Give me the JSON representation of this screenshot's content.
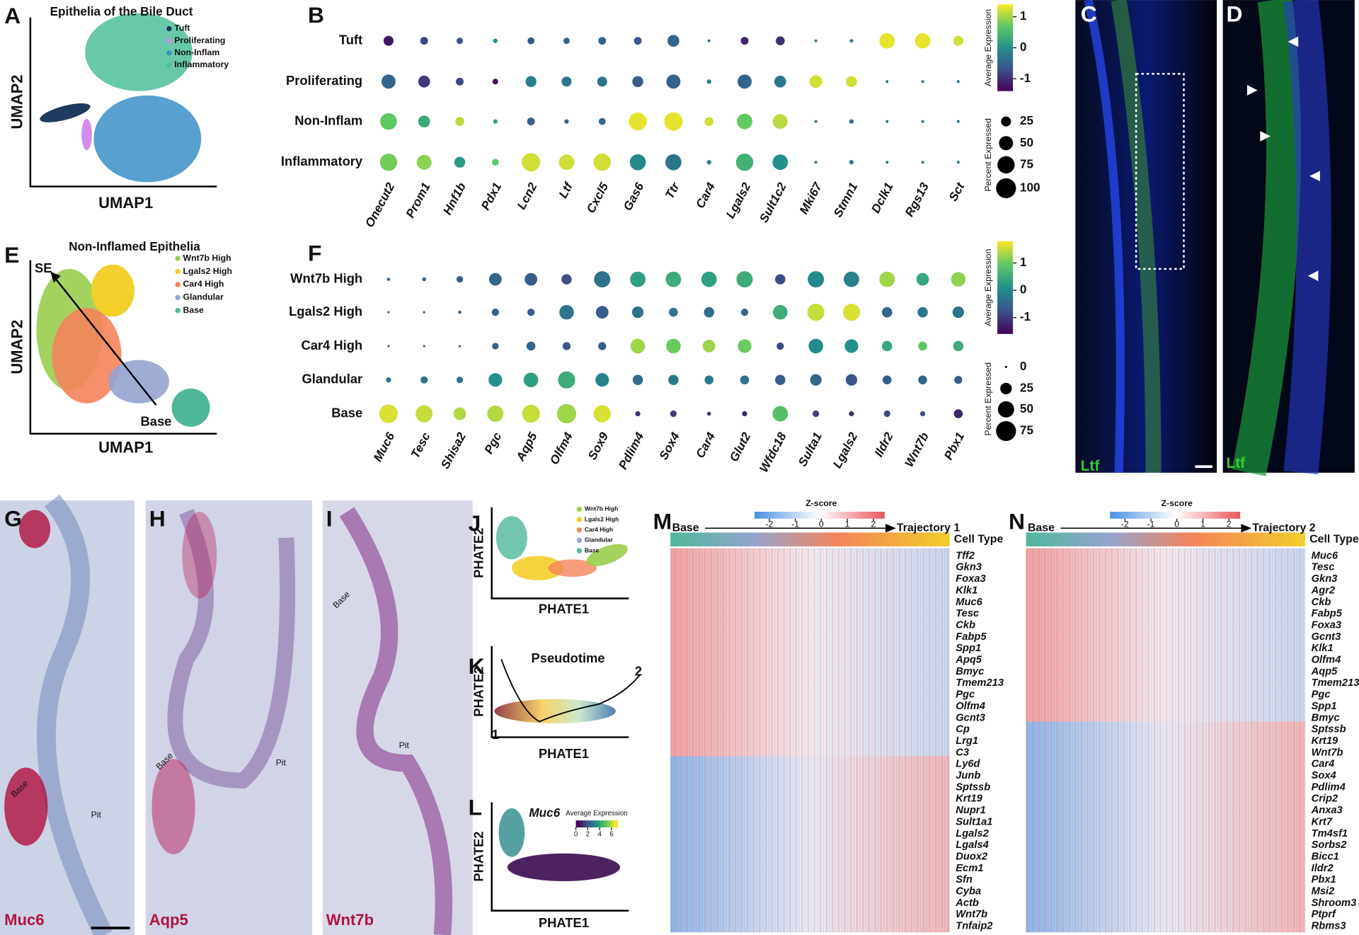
{
  "panel_a": {
    "letter": "A",
    "title": "Epithelia of the Bile Duct",
    "x_label": "UMAP1",
    "y_label": "UMAP2",
    "legend": [
      {
        "name": "Tuft",
        "color": "#1f3a5f"
      },
      {
        "name": "Proliferating",
        "color": "#d58be8"
      },
      {
        "name": "Non-Inflam",
        "color": "#3a8fc7"
      },
      {
        "name": "Inflammatory",
        "color": "#4dbf9a"
      }
    ]
  },
  "panel_b": {
    "letter": "B",
    "rows": [
      "Tuft",
      "Proliferating",
      "Non-Inflam",
      "Inflammatory"
    ],
    "genes": [
      "Onecut2",
      "Prom1",
      "Hnf1b",
      "Pdx1",
      "Lcn2",
      "Ltf",
      "Cxcl5",
      "Gas6",
      "Ttr",
      "Car4",
      "Lgals2",
      "Sult1c2",
      "Mki67",
      "Stmn1",
      "Dclk1",
      "Rgs13",
      "Sct"
    ],
    "expression": [
      [
        -1.2,
        -0.8,
        -0.7,
        0,
        -0.6,
        -0.5,
        -0.5,
        -0.6,
        -0.5,
        -0.3,
        -1.1,
        -1.0,
        -0.3,
        -0.3,
        1.3,
        1.3,
        1.2
      ],
      [
        -0.5,
        -0.9,
        -0.8,
        -1.3,
        -0.2,
        -0.3,
        -0.3,
        -0.6,
        -0.5,
        -0.2,
        -0.5,
        -0.3,
        1.2,
        1.2,
        -0.3,
        -0.3,
        -0.3
      ],
      [
        0.7,
        0.3,
        1.1,
        0.2,
        -0.6,
        -0.5,
        -0.5,
        1.3,
        1.3,
        1.2,
        0.7,
        1.1,
        -0.3,
        -0.4,
        -0.3,
        -0.3,
        -0.3
      ],
      [
        0.8,
        0.9,
        0.1,
        0.7,
        1.2,
        1.2,
        1.2,
        -0.1,
        -0.3,
        -0.2,
        0.4,
        0,
        -0.3,
        -0.3,
        -0.3,
        -0.3,
        -0.3
      ]
    ],
    "percent": [
      [
        25,
        15,
        10,
        5,
        12,
        10,
        15,
        15,
        35,
        2,
        15,
        20,
        2,
        3,
        60,
        60,
        25
      ],
      [
        50,
        35,
        15,
        8,
        30,
        25,
        25,
        30,
        50,
        5,
        50,
        35,
        40,
        30,
        2,
        2,
        2
      ],
      [
        70,
        35,
        20,
        5,
        15,
        5,
        12,
        80,
        85,
        20,
        60,
        55,
        2,
        5,
        2,
        2,
        2
      ],
      [
        75,
        55,
        30,
        12,
        85,
        60,
        75,
        65,
        65,
        5,
        75,
        60,
        2,
        5,
        2,
        2,
        2
      ]
    ],
    "color_label": "Average Expression",
    "color_lim": [
      -1.4,
      1.4
    ],
    "color_ticks": [
      1,
      0,
      -1
    ],
    "size_label": "Percent Expressed",
    "size_ticks": [
      25,
      50,
      75,
      100
    ],
    "size_max": 100,
    "colorscale": [
      "#440154",
      "#3b528b",
      "#21918c",
      "#5ec962",
      "#fde725"
    ]
  },
  "panel_c": {
    "letter": "C",
    "stain": "Ltf"
  },
  "panel_d": {
    "letter": "D",
    "stain": "Ltf"
  },
  "panel_e": {
    "letter": "E",
    "title": "Non-Inflamed Epithelia",
    "x_label": "UMAP1",
    "y_label": "UMAP2",
    "start_label": "SE",
    "end_label": "Base",
    "legend": [
      {
        "name": "Wnt7b High",
        "color": "#9acd4c"
      },
      {
        "name": "Lgals2 High",
        "color": "#f2cf2a"
      },
      {
        "name": "Car4 High",
        "color": "#f4845a"
      },
      {
        "name": "Glandular",
        "color": "#95a3cf"
      },
      {
        "name": "Base",
        "color": "#4fb89a"
      }
    ]
  },
  "panel_f": {
    "letter": "F",
    "rows": [
      "Wnt7b High",
      "Lgals2 High",
      "Car4 High",
      "Glandular",
      "Base"
    ],
    "genes": [
      "Muc6",
      "Tesc",
      "Shisa2",
      "Pgc",
      "Aqp5",
      "Olfm4",
      "Sox9",
      "Pdlim4",
      "Sox4",
      "Car4",
      "Glut2",
      "Wfdc18",
      "Sulta1",
      "Lgals2",
      "Ildr2",
      "Wnt7b",
      "Pbx1"
    ],
    "expression": [
      [
        -0.5,
        -0.5,
        -0.6,
        -0.5,
        -0.6,
        -0.8,
        -0.3,
        0.3,
        0.5,
        0.3,
        0.5,
        -0.8,
        0,
        -0.1,
        1.3,
        0.4,
        1.2
      ],
      [
        -0.5,
        -0.5,
        -0.5,
        -0.6,
        -0.6,
        -0.3,
        -0.6,
        -0.3,
        -0.3,
        -0.4,
        -0.5,
        0.5,
        1.5,
        1.6,
        -0.5,
        -0.3,
        -0.3
      ],
      [
        -0.5,
        -0.5,
        -0.5,
        -0.6,
        -0.5,
        -0.7,
        -0.6,
        1.3,
        1.0,
        1.3,
        1.0,
        -0.8,
        0,
        0.1,
        0.4,
        0.9,
        0.5
      ],
      [
        -0.3,
        -0.3,
        -0.3,
        0.1,
        0.3,
        0.5,
        -0.1,
        -0.4,
        -0.2,
        -0.2,
        -0.3,
        -0.6,
        -0.5,
        -0.7,
        -0.6,
        -0.5,
        -0.6
      ],
      [
        1.6,
        1.5,
        1.4,
        1.4,
        1.5,
        1.3,
        1.6,
        -1.1,
        -1.0,
        -1.0,
        -1.2,
        0.8,
        -1.0,
        -1.1,
        -0.9,
        -0.8,
        -1.2
      ]
    ],
    "percent": [
      [
        2,
        3,
        8,
        30,
        30,
        20,
        50,
        45,
        45,
        45,
        50,
        20,
        50,
        45,
        45,
        30,
        40
      ],
      [
        1,
        1,
        2,
        10,
        10,
        40,
        30,
        25,
        15,
        20,
        10,
        40,
        55,
        55,
        20,
        20,
        25
      ],
      [
        1,
        1,
        1,
        8,
        15,
        12,
        12,
        40,
        40,
        30,
        35,
        10,
        40,
        35,
        20,
        15,
        20
      ],
      [
        5,
        10,
        8,
        35,
        40,
        55,
        35,
        20,
        20,
        15,
        15,
        20,
        25,
        25,
        15,
        15,
        12
      ],
      [
        65,
        55,
        30,
        50,
        60,
        70,
        55,
        5,
        8,
        3,
        5,
        45,
        8,
        5,
        8,
        5,
        15
      ]
    ],
    "color_label": "Average Expression",
    "color_lim": [
      -1.6,
      1.8
    ],
    "color_ticks": [
      1,
      0,
      -1
    ],
    "size_label": "Percent Expressed",
    "size_ticks": [
      0,
      25,
      50,
      75
    ],
    "size_max": 75,
    "colorscale": [
      "#440154",
      "#3b528b",
      "#21918c",
      "#5ec962",
      "#fde725"
    ]
  },
  "panel_g": {
    "letter": "G",
    "probe": "Muc6",
    "base_label": "Base",
    "pit_label": "Pit"
  },
  "panel_h": {
    "letter": "H",
    "probe": "Aqp5",
    "base_label": "Base",
    "pit_label": "Pit"
  },
  "panel_i": {
    "letter": "I",
    "probe": "Wnt7b",
    "base_label": "Base",
    "pit_label": "Pit"
  },
  "panel_j": {
    "letter": "J",
    "x_label": "PHATE1",
    "y_label": "PHATE2",
    "legend": [
      {
        "name": "Wnt7b High",
        "color": "#9acd4c"
      },
      {
        "name": "Lgals2 High",
        "color": "#f2cf2a"
      },
      {
        "name": "Car4 High",
        "color": "#f4845a"
      },
      {
        "name": "Glandular",
        "color": "#95a3cf"
      },
      {
        "name": "Base",
        "color": "#4fb89a"
      }
    ]
  },
  "panel_k": {
    "letter": "K",
    "title": "Pseudotime",
    "x_label": "PHATE1",
    "y_label": "PHATE2",
    "start_label": "1",
    "end_label": "2"
  },
  "panel_l": {
    "letter": "L",
    "gene": "Muc6",
    "x_label": "PHATE1",
    "y_label": "PHATE2",
    "color_label": "Average Expression",
    "color_lim": [
      0,
      7
    ],
    "color_ticks": [
      0,
      2,
      4,
      6
    ]
  },
  "panel_m": {
    "letter": "M",
    "scale_label": "Z-score",
    "zlim": [
      -2.5,
      2.5
    ],
    "zticks": [
      -2,
      -1,
      0,
      1,
      2
    ],
    "start_label": "Base",
    "end_label": "Trajectory 1",
    "track_label": "Cell Type",
    "genes": [
      "Tff2",
      "Gkn3",
      "Foxa3",
      "Klk1",
      "Muc6",
      "Tesc",
      "Ckb",
      "Fabp5",
      "Spp1",
      "Apq5",
      "Bmyc",
      "Tmem213",
      "Pgc",
      "Olfm4",
      "Gcnt3",
      "Cp",
      "Lrg1",
      "C3",
      "Ly6d",
      "Junb",
      "Sptssb",
      "Krt19",
      "Nupr1",
      "Sult1a1",
      "Lgals2",
      "Lgals4",
      "Duox2",
      "Ecm1",
      "Sfn",
      "Cyba",
      "Actb",
      "Wnt7b",
      "Tnfaip2"
    ]
  },
  "panel_n": {
    "letter": "N",
    "scale_label": "Z-score",
    "zlim": [
      -2.5,
      2.5
    ],
    "zticks": [
      -2,
      -1,
      0,
      1,
      2
    ],
    "start_label": "Base",
    "end_label": "Trajectory 2",
    "track_label": "Cell Type",
    "genes": [
      "Muc6",
      "Tesc",
      "Gkn3",
      "Agr2",
      "Ckb",
      "Fabp5",
      "Foxa3",
      "Gcnt3",
      "Klk1",
      "Olfm4",
      "Aqp5",
      "Tmem213",
      "Pgc",
      "Spp1",
      "Bmyc",
      "Sptssb",
      "Krt19",
      "Wnt7b",
      "Car4",
      "Sox4",
      "Pdlim4",
      "Crip2",
      "Anxa3",
      "Krt7",
      "Tm4sf1",
      "Sorbs2",
      "Bicc1",
      "Ildr2",
      "Pbx1",
      "Msi2",
      "Shroom3",
      "Ptprf",
      "Rbms3"
    ]
  }
}
